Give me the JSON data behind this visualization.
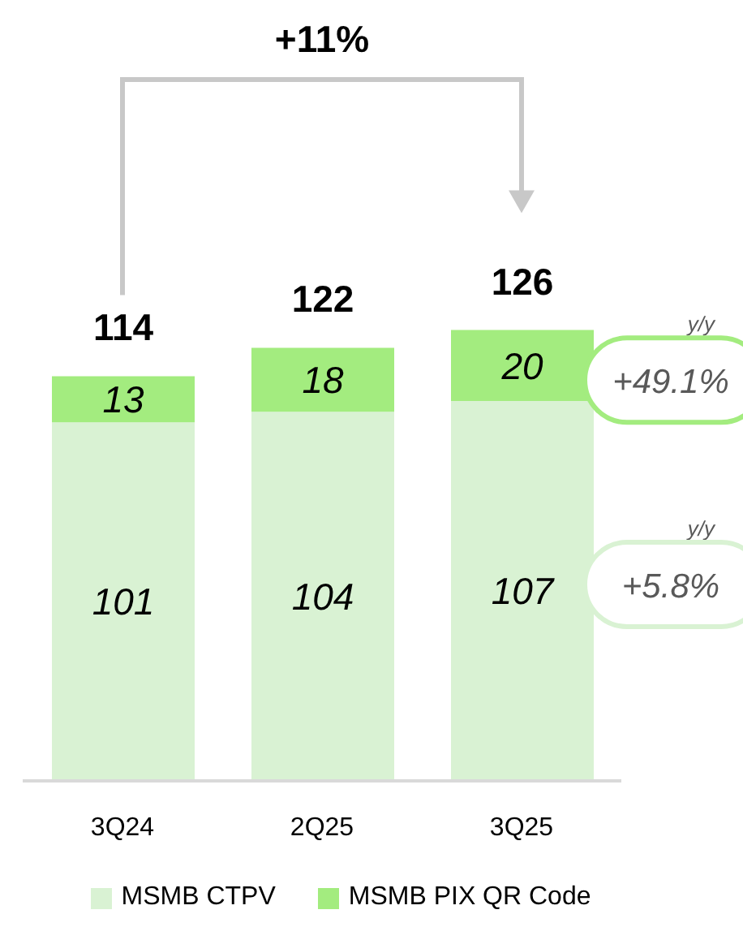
{
  "chart_data": {
    "type": "bar",
    "stacked": true,
    "categories": [
      "3Q24",
      "2Q25",
      "3Q25"
    ],
    "series": [
      {
        "name": "MSMB CTPV",
        "color": "#d9f2d3",
        "values": [
          101,
          104,
          107
        ]
      },
      {
        "name": "MSMB PIX QR Code",
        "color": "#a3ec7f",
        "values": [
          13,
          18,
          20
        ]
      }
    ],
    "data_labels": true,
    "totals": [
      "114",
      "122",
      "126"
    ],
    "legend": "bottom",
    "grid": false,
    "annotations": [
      "+11%",
      "y/y",
      "+49.1%",
      "y/y",
      "+5.8%"
    ]
  }
}
